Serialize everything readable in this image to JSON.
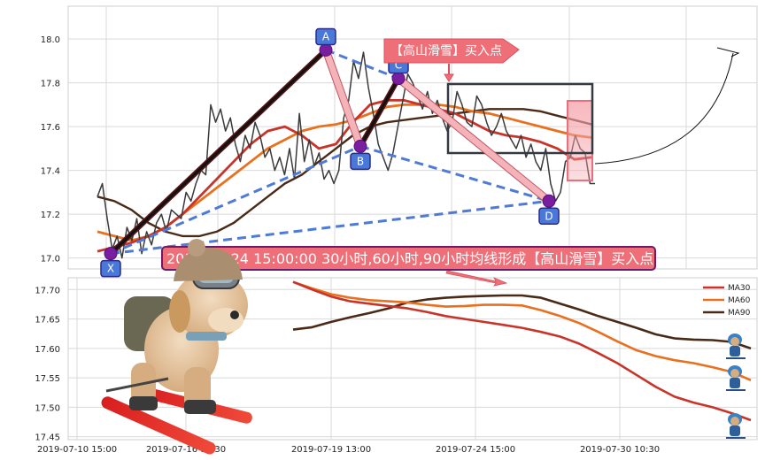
{
  "chart_data": [
    {
      "type": "line",
      "panel": "price",
      "ylim": [
        16.95,
        18.15
      ],
      "yticks": [
        "17.0",
        "17.2",
        "17.4",
        "17.6",
        "17.8",
        "18.0"
      ],
      "grid": true,
      "series": [
        {
          "key": "price",
          "color": "#3a3a3a",
          "values": [
            17.28,
            17.34,
            17.18,
            17.04,
            17.1,
            17.0,
            17.14,
            17.08,
            17.18,
            17.02,
            17.12,
            17.06,
            17.16,
            17.2,
            17.12,
            17.22,
            17.2,
            17.18,
            17.3,
            17.26,
            17.34,
            17.4,
            17.38,
            17.7,
            17.62,
            17.68,
            17.58,
            17.64,
            17.52,
            17.44,
            17.56,
            17.5,
            17.62,
            17.56,
            17.46,
            17.5,
            17.4,
            17.46,
            17.38,
            17.5,
            17.36,
            17.66,
            17.44,
            17.54,
            17.42,
            17.48,
            17.36,
            17.4,
            17.34,
            17.4,
            17.64,
            17.72,
            17.9,
            17.82,
            17.94,
            17.78,
            17.66,
            17.52,
            17.46,
            17.4,
            17.48,
            17.6,
            17.72,
            17.84,
            17.8,
            17.74,
            17.68,
            17.76,
            17.66,
            17.72,
            17.64,
            17.58,
            17.62,
            17.76,
            17.7,
            17.62,
            17.6,
            17.74,
            17.7,
            17.62,
            17.56,
            17.6,
            17.66,
            17.58,
            17.54,
            17.5,
            17.56,
            17.46,
            17.52,
            17.44,
            17.4,
            17.5,
            17.34,
            17.26,
            17.3,
            17.44,
            17.46,
            17.56,
            17.5,
            17.48,
            17.34,
            17.34
          ]
        },
        {
          "key": "ma30",
          "color": "#c8342a",
          "values": [
            17.03,
            17.05,
            17.07,
            17.1,
            17.14,
            17.2,
            17.28,
            17.36,
            17.44,
            17.52,
            17.58,
            17.6,
            17.56,
            17.5,
            17.52,
            17.62,
            17.7,
            17.72,
            17.72,
            17.7,
            17.68,
            17.66,
            17.62,
            17.58,
            17.56,
            17.55,
            17.53,
            17.5,
            17.45,
            17.46
          ]
        },
        {
          "key": "ma60",
          "color": "#e8701e",
          "values": [
            17.12,
            17.1,
            17.08,
            17.1,
            17.14,
            17.2,
            17.26,
            17.32,
            17.38,
            17.44,
            17.5,
            17.54,
            17.58,
            17.6,
            17.61,
            17.63,
            17.66,
            17.69,
            17.7,
            17.7,
            17.7,
            17.69,
            17.67,
            17.66,
            17.64,
            17.62,
            17.6,
            17.58,
            17.56,
            17.55
          ]
        },
        {
          "key": "ma90",
          "color": "#4a2a16",
          "values": [
            17.28,
            17.26,
            17.22,
            17.16,
            17.12,
            17.1,
            17.1,
            17.12,
            17.16,
            17.22,
            17.28,
            17.34,
            17.38,
            17.44,
            17.5,
            17.56,
            17.6,
            17.62,
            17.63,
            17.64,
            17.65,
            17.66,
            17.67,
            17.68,
            17.68,
            17.68,
            17.67,
            17.65,
            17.63,
            17.61
          ]
        }
      ],
      "pattern_points": [
        {
          "label": "X",
          "value": 17.02
        },
        {
          "label": "A",
          "value": 17.95
        },
        {
          "label": "B",
          "value": 17.51
        },
        {
          "label": "C",
          "value": 17.82
        },
        {
          "label": "D",
          "value": 17.26
        }
      ],
      "annotation_tag": "【高山滑雪】买入点"
    },
    {
      "type": "line",
      "panel": "moving-averages",
      "ylim": [
        17.445,
        17.72
      ],
      "yticks": [
        "17.45",
        "17.50",
        "17.55",
        "17.60",
        "17.65",
        "17.70"
      ],
      "xticks": [
        "2019-07-10 15:00",
        "2019-07-16 10:30",
        "2019-07-19 13:00",
        "2019-07-24 15:00",
        "2019-07-30 10:30"
      ],
      "grid": true,
      "legend_position": "top-right",
      "series": [
        {
          "name": "MA30",
          "color": "#c8342a",
          "values": [
            17.713,
            17.7,
            17.688,
            17.68,
            17.676,
            17.672,
            17.668,
            17.662,
            17.655,
            17.65,
            17.645,
            17.64,
            17.635,
            17.628,
            17.62,
            17.608,
            17.592,
            17.575,
            17.555,
            17.535,
            17.518,
            17.508,
            17.5,
            17.49,
            17.478
          ]
        },
        {
          "name": "MA60",
          "color": "#e8701e",
          "values": [
            17.713,
            17.702,
            17.692,
            17.686,
            17.682,
            17.68,
            17.678,
            17.674,
            17.671,
            17.672,
            17.674,
            17.674,
            17.673,
            17.665,
            17.655,
            17.643,
            17.628,
            17.612,
            17.597,
            17.587,
            17.58,
            17.575,
            17.568,
            17.56,
            17.546
          ]
        },
        {
          "name": "MA90",
          "color": "#4a2a16",
          "values": [
            17.632,
            17.636,
            17.645,
            17.653,
            17.66,
            17.668,
            17.678,
            17.683,
            17.686,
            17.688,
            17.689,
            17.69,
            17.69,
            17.686,
            17.676,
            17.666,
            17.655,
            17.645,
            17.635,
            17.624,
            17.617,
            17.615,
            17.614,
            17.611,
            17.6
          ]
        }
      ],
      "banner": "2019-07-24 15:00:00 30小时,60小时,90小时均线形成【高山滑雪】买入点"
    }
  ]
}
